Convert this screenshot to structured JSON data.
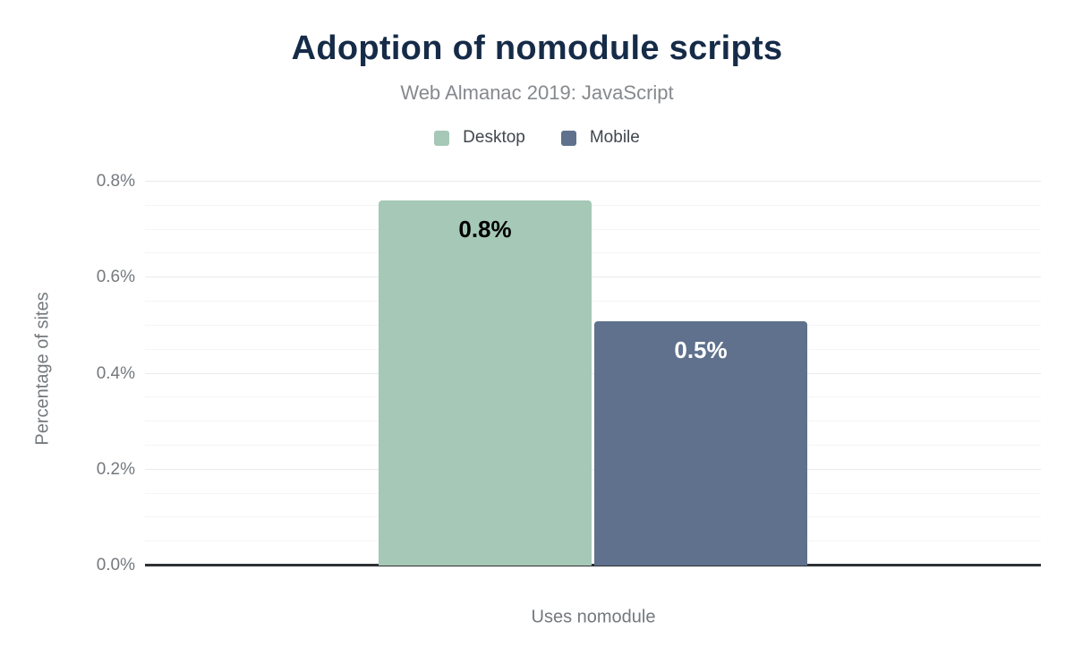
{
  "chart_data": {
    "type": "bar",
    "title": "Adoption of nomodule scripts",
    "subtitle": "Web Almanac 2019: JavaScript",
    "categories": [
      "Uses nomodule"
    ],
    "series": [
      {
        "name": "Desktop",
        "values": [
          0.76
        ],
        "bar_labels": [
          "0.8%"
        ],
        "color": "#a5c8b7",
        "label_color": "#000000"
      },
      {
        "name": "Mobile",
        "values": [
          0.51
        ],
        "bar_labels": [
          "0.5%"
        ],
        "color": "#5f718c",
        "label_color": "#ffffff"
      }
    ],
    "xlabel": "Uses nomodule",
    "ylabel": "Percentage of sites",
    "ylim": [
      0,
      0.8
    ],
    "y_ticks": [
      "0.0%",
      "0.2%",
      "0.4%",
      "0.6%",
      "0.8%"
    ],
    "y_major_step": 0.2,
    "y_minor_step": 0.05,
    "grid": true,
    "legend_position": "top"
  },
  "colors": {
    "title": "#152b48",
    "subtitle": "#86898d",
    "axis_text": "#74797d",
    "legend_text": "#40474e",
    "baseline": "#2d3134",
    "grid_major": "#e8eaec",
    "grid_minor": "#f4f5f6"
  }
}
